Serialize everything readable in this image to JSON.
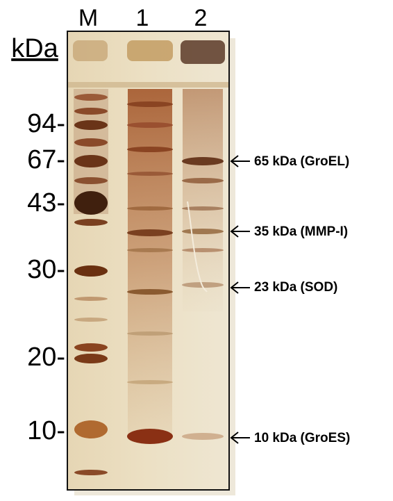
{
  "lanes": [
    "M",
    "1",
    "2"
  ],
  "unit": "kDa",
  "markers": [
    "94-",
    "67-",
    "43-",
    "30-",
    "20-",
    "10-"
  ],
  "annotations": [
    "65 kDa (GroEL)",
    "35 kDa (MMP-I)",
    "23 kDa (SOD)",
    "10 kDa (GroES)"
  ]
}
